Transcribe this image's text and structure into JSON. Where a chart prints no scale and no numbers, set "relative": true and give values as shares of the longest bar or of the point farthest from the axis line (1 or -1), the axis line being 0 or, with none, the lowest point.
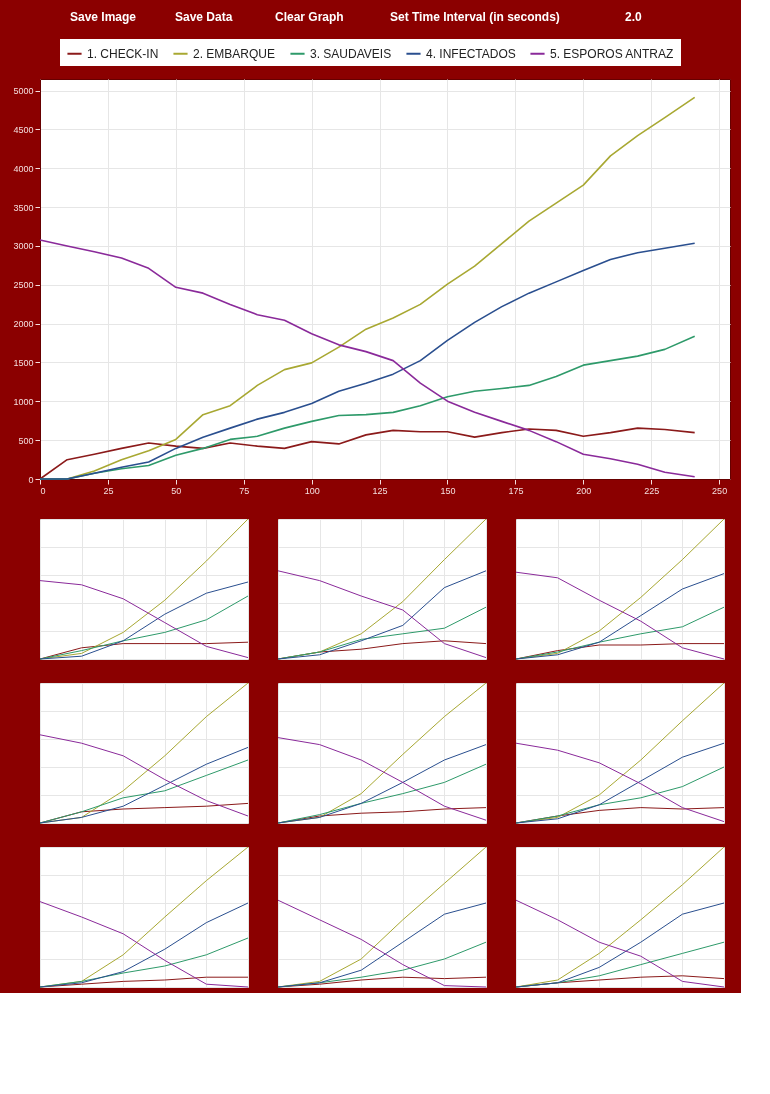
{
  "chart_data": [
    {
      "type": "line",
      "legend": "top",
      "grid": true,
      "annotations": [
        "Save Image",
        "Save Data",
        "Clear Graph",
        "Set Time Interval (in seconds)",
        "2.0"
      ],
      "x": [
        0,
        10,
        20,
        30,
        40,
        50,
        60,
        70,
        80,
        90,
        100,
        110,
        120,
        130,
        140,
        150,
        160,
        170,
        180,
        190,
        200,
        210,
        220,
        230,
        241
      ],
      "xlim": [
        0,
        254
      ],
      "xticks": [
        0,
        25,
        50,
        75,
        100,
        125,
        150,
        175,
        200,
        225,
        250
      ],
      "ylim": [
        0,
        5150
      ],
      "yticks": [
        0,
        500,
        1000,
        1500,
        2000,
        2500,
        3000,
        3500,
        4000,
        4500,
        5000
      ],
      "series": [
        {
          "name": "1. CHECK-IN",
          "color": "#8b1a1a",
          "values": [
            0,
            249,
            319,
            394,
            464,
            423,
            394,
            464,
            423,
            394,
            481,
            452,
            568,
            626,
            608,
            608,
            539,
            597,
            643,
            626,
            550,
            597,
            655,
            637,
            597
          ]
        },
        {
          "name": "2. EMBARQUE",
          "color": "#a8a832",
          "values": [
            0,
            0,
            104,
            249,
            365,
            510,
            828,
            944,
            1205,
            1408,
            1495,
            1698,
            1929,
            2074,
            2248,
            2509,
            2741,
            3030,
            3320,
            3552,
            3784,
            4160,
            4421,
            4653,
            4913
          ]
        },
        {
          "name": "3. SAUDAVEIS",
          "color": "#2e9a6a",
          "values": [
            0,
            0,
            75,
            133,
            174,
            307,
            394,
            510,
            550,
            655,
            742,
            817,
            829,
            858,
            944,
            1060,
            1130,
            1165,
            1205,
            1321,
            1466,
            1524,
            1582,
            1669,
            1837
          ]
        },
        {
          "name": "4. INFECTADOS",
          "color": "#2a4f8f",
          "values": [
            0,
            0,
            75,
            151,
            220,
            394,
            539,
            655,
            771,
            858,
            973,
            1130,
            1234,
            1350,
            1524,
            1785,
            2016,
            2219,
            2393,
            2538,
            2683,
            2827,
            2914,
            2972,
            3036
          ]
        },
        {
          "name": "5. ESPOROS ANTRAZ",
          "color": "#8a2a9a",
          "values": [
            3077,
            3001,
            2926,
            2845,
            2712,
            2468,
            2393,
            2248,
            2115,
            2045,
            1871,
            1727,
            1640,
            1524,
            1234,
            1002,
            858,
            742,
            626,
            481,
            319,
            261,
            191,
            87,
            29
          ]
        }
      ]
    },
    {
      "type": "line",
      "relative": true,
      "grid": true,
      "categories": [
        null,
        null,
        null,
        null,
        null,
        null
      ],
      "series": [
        {
          "color": "#8b1a1a",
          "values": [
            0,
            0.08,
            0.11,
            0.11,
            0.11,
            0.12
          ]
        },
        {
          "color": "#a8a832",
          "values": [
            0,
            0.04,
            0.19,
            0.42,
            0.7,
            1
          ]
        },
        {
          "color": "#2e9a6a",
          "values": [
            0,
            0.06,
            0.13,
            0.19,
            0.28,
            0.45
          ]
        },
        {
          "color": "#2a4f8f",
          "values": [
            0,
            0.02,
            0.13,
            0.32,
            0.47,
            0.55
          ]
        },
        {
          "color": "#8a2a9a",
          "values": [
            0.56,
            0.53,
            0.43,
            0.26,
            0.09,
            0.01
          ]
        }
      ]
    },
    {
      "type": "line",
      "relative": true,
      "grid": true,
      "categories": [
        null,
        null,
        null,
        null,
        null,
        null
      ],
      "series": [
        {
          "color": "#8b1a1a",
          "values": [
            0,
            0.05,
            0.07,
            0.11,
            0.13,
            0.11
          ]
        },
        {
          "color": "#a8a832",
          "values": [
            0,
            0.05,
            0.18,
            0.41,
            0.71,
            1
          ]
        },
        {
          "color": "#2e9a6a",
          "values": [
            0,
            0.05,
            0.14,
            0.18,
            0.22,
            0.37
          ]
        },
        {
          "color": "#2a4f8f",
          "values": [
            0,
            0.03,
            0.13,
            0.24,
            0.51,
            0.63
          ]
        },
        {
          "color": "#8a2a9a",
          "values": [
            0.63,
            0.56,
            0.45,
            0.35,
            0.11,
            0.01
          ]
        }
      ]
    },
    {
      "type": "line",
      "relative": true,
      "grid": true,
      "categories": [
        null,
        null,
        null,
        null,
        null,
        null
      ],
      "series": [
        {
          "color": "#8b1a1a",
          "values": [
            0,
            0.06,
            0.1,
            0.1,
            0.11,
            0.11
          ]
        },
        {
          "color": "#a8a832",
          "values": [
            0,
            0.04,
            0.2,
            0.44,
            0.71,
            1
          ]
        },
        {
          "color": "#2e9a6a",
          "values": [
            0,
            0.05,
            0.12,
            0.18,
            0.23,
            0.37
          ]
        },
        {
          "color": "#2a4f8f",
          "values": [
            0,
            0.03,
            0.12,
            0.31,
            0.5,
            0.61
          ]
        },
        {
          "color": "#8a2a9a",
          "values": [
            0.62,
            0.58,
            0.42,
            0.27,
            0.08,
            0
          ]
        }
      ]
    },
    {
      "type": "line",
      "relative": true,
      "grid": true,
      "categories": [
        null,
        null,
        null,
        null,
        null,
        null
      ],
      "series": [
        {
          "color": "#8b1a1a",
          "values": [
            0,
            0.08,
            0.1,
            0.11,
            0.12,
            0.14
          ]
        },
        {
          "color": "#a8a832",
          "values": [
            0,
            0.04,
            0.23,
            0.48,
            0.76,
            1
          ]
        },
        {
          "color": "#2e9a6a",
          "values": [
            0,
            0.08,
            0.18,
            0.23,
            0.34,
            0.45
          ]
        },
        {
          "color": "#2a4f8f",
          "values": [
            0,
            0.04,
            0.12,
            0.27,
            0.42,
            0.54
          ]
        },
        {
          "color": "#8a2a9a",
          "values": [
            0.63,
            0.57,
            0.48,
            0.31,
            0.16,
            0.05
          ]
        }
      ]
    },
    {
      "type": "line",
      "relative": true,
      "grid": true,
      "categories": [
        null,
        null,
        null,
        null,
        null,
        null
      ],
      "series": [
        {
          "color": "#8b1a1a",
          "values": [
            0,
            0.05,
            0.07,
            0.08,
            0.1,
            0.11
          ]
        },
        {
          "color": "#a8a832",
          "values": [
            0,
            0.04,
            0.21,
            0.49,
            0.76,
            1
          ]
        },
        {
          "color": "#2e9a6a",
          "values": [
            0,
            0.06,
            0.14,
            0.21,
            0.29,
            0.42
          ]
        },
        {
          "color": "#2a4f8f",
          "values": [
            0,
            0.04,
            0.14,
            0.29,
            0.45,
            0.56
          ]
        },
        {
          "color": "#8a2a9a",
          "values": [
            0.61,
            0.56,
            0.45,
            0.29,
            0.12,
            0.02
          ]
        }
      ]
    },
    {
      "type": "line",
      "relative": true,
      "grid": true,
      "categories": [
        null,
        null,
        null,
        null,
        null,
        null
      ],
      "series": [
        {
          "color": "#8b1a1a",
          "values": [
            0,
            0.05,
            0.09,
            0.11,
            0.1,
            0.11
          ]
        },
        {
          "color": "#a8a832",
          "values": [
            0,
            0.04,
            0.2,
            0.45,
            0.73,
            1
          ]
        },
        {
          "color": "#2e9a6a",
          "values": [
            0,
            0.05,
            0.13,
            0.18,
            0.26,
            0.4
          ]
        },
        {
          "color": "#2a4f8f",
          "values": [
            0,
            0.03,
            0.13,
            0.3,
            0.47,
            0.57
          ]
        },
        {
          "color": "#8a2a9a",
          "values": [
            0.57,
            0.52,
            0.43,
            0.28,
            0.11,
            0.01
          ]
        }
      ]
    },
    {
      "type": "line",
      "relative": true,
      "grid": true,
      "categories": [
        null,
        null,
        null,
        null,
        null,
        null
      ],
      "series": [
        {
          "color": "#8b1a1a",
          "values": [
            0,
            0.02,
            0.04,
            0.05,
            0.07,
            0.07
          ]
        },
        {
          "color": "#a8a832",
          "values": [
            0,
            0.04,
            0.23,
            0.5,
            0.76,
            1
          ]
        },
        {
          "color": "#2e9a6a",
          "values": [
            0,
            0.04,
            0.1,
            0.15,
            0.23,
            0.35
          ]
        },
        {
          "color": "#2a4f8f",
          "values": [
            0,
            0.03,
            0.11,
            0.27,
            0.46,
            0.6
          ]
        },
        {
          "color": "#8a2a9a",
          "values": [
            0.61,
            0.5,
            0.38,
            0.19,
            0.02,
            0
          ]
        }
      ]
    },
    {
      "type": "line",
      "relative": true,
      "grid": true,
      "categories": [
        null,
        null,
        null,
        null,
        null,
        null
      ],
      "series": [
        {
          "color": "#8b1a1a",
          "values": [
            0,
            0.02,
            0.05,
            0.07,
            0.06,
            0.07
          ]
        },
        {
          "color": "#a8a832",
          "values": [
            0,
            0.04,
            0.2,
            0.48,
            0.74,
            1
          ]
        },
        {
          "color": "#2e9a6a",
          "values": [
            0,
            0.03,
            0.07,
            0.12,
            0.2,
            0.32
          ]
        },
        {
          "color": "#2a4f8f",
          "values": [
            0,
            0.03,
            0.12,
            0.32,
            0.52,
            0.6
          ]
        },
        {
          "color": "#8a2a9a",
          "values": [
            0.62,
            0.48,
            0.34,
            0.16,
            0.01,
            0
          ]
        }
      ]
    },
    {
      "type": "line",
      "relative": true,
      "grid": true,
      "categories": [
        null,
        null,
        null,
        null,
        null,
        null
      ],
      "series": [
        {
          "color": "#8b1a1a",
          "values": [
            0,
            0.03,
            0.05,
            0.07,
            0.08,
            0.06
          ]
        },
        {
          "color": "#a8a832",
          "values": [
            0,
            0.05,
            0.24,
            0.48,
            0.73,
            1
          ]
        },
        {
          "color": "#2e9a6a",
          "values": [
            0,
            0.03,
            0.08,
            0.16,
            0.24,
            0.32
          ]
        },
        {
          "color": "#2a4f8f",
          "values": [
            0,
            0.03,
            0.14,
            0.32,
            0.52,
            0.6
          ]
        },
        {
          "color": "#8a2a9a",
          "values": [
            0.62,
            0.48,
            0.32,
            0.22,
            0.04,
            0
          ]
        }
      ]
    }
  ]
}
